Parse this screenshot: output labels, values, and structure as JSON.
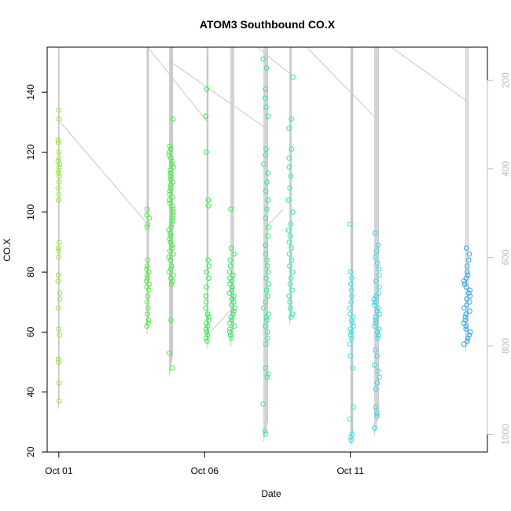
{
  "chart_data": {
    "type": "scatter",
    "title": "ATOM3 Southbound CO.X",
    "xlabel": "Date",
    "ylabel": "CO.X",
    "x_ticks": [
      {
        "label": "Oct 01",
        "day": 1
      },
      {
        "label": "Oct 06",
        "day": 6
      },
      {
        "label": "Oct 11",
        "day": 11
      }
    ],
    "xlim": [
      0.6,
      15.7
    ],
    "ylim": [
      20,
      155
    ],
    "y_ticks": [
      20,
      40,
      60,
      80,
      100,
      120,
      140
    ],
    "right_axis": {
      "description": "pressure (reversed)",
      "ticks": [
        200,
        400,
        600,
        800,
        1000
      ],
      "range": [
        125,
        1040
      ]
    },
    "grid": false,
    "legend": "none",
    "colors": {
      "early": "#8ee83a",
      "mid": "#2bef45",
      "late": "#2ee6e6",
      "end": "#2aa7ee",
      "pressure_line": "#c8c8c8"
    },
    "clusters": [
      {
        "day": 1.0,
        "points": [
          134,
          131,
          124,
          123,
          120,
          118,
          117,
          116,
          115,
          114,
          113,
          112,
          110,
          108,
          106,
          104,
          90,
          88,
          87,
          85,
          79,
          77,
          73,
          71,
          68,
          61,
          59,
          51,
          50,
          43,
          37
        ],
        "spread": 0.03
      },
      {
        "day": 4.05,
        "points": [
          101,
          99,
          98,
          96,
          95,
          84,
          82,
          81,
          80,
          79,
          78,
          77,
          76,
          75,
          74,
          72,
          70,
          68,
          66,
          64,
          63,
          62
        ],
        "spread": 0.05
      },
      {
        "day": 4.85,
        "points": [
          122,
          121,
          120,
          119,
          118,
          117,
          116,
          115,
          114,
          113,
          112,
          111,
          110,
          109,
          108,
          107,
          106,
          105,
          104,
          103,
          102,
          101,
          100,
          99,
          98,
          97,
          96,
          95,
          94,
          93,
          92,
          91,
          90,
          89,
          88,
          87,
          86,
          85,
          84,
          82,
          81,
          80,
          79,
          78,
          77,
          76,
          64,
          53,
          48,
          131
        ],
        "spread": 0.08
      },
      {
        "day": 6.1,
        "points": [
          141,
          132,
          120,
          104,
          102,
          84,
          82,
          80,
          78,
          75,
          72,
          70,
          68,
          66,
          65,
          64,
          63,
          62,
          61,
          60,
          59,
          58,
          57
        ],
        "spread": 0.06
      },
      {
        "day": 6.95,
        "points": [
          101,
          88,
          86,
          84,
          82,
          80,
          79,
          78,
          77,
          76,
          75,
          74,
          73,
          72,
          71,
          70,
          69,
          68,
          67,
          66,
          65,
          64,
          63,
          62,
          61,
          60,
          59,
          58
        ],
        "spread": 0.1
      },
      {
        "day": 8.1,
        "points": [
          151,
          148,
          141,
          138,
          135,
          132,
          121,
          119,
          116,
          113,
          110,
          107,
          104,
          101,
          98,
          95,
          92,
          89,
          86,
          84,
          82,
          80,
          78,
          76,
          74,
          72,
          70,
          68,
          66,
          65,
          64,
          62,
          60,
          58,
          56,
          48,
          46,
          45,
          36,
          27,
          26
        ],
        "spread": 0.1
      },
      {
        "day": 8.95,
        "points": [
          145,
          131,
          128,
          121,
          118,
          115,
          112,
          108,
          104,
          100,
          96,
          94,
          92,
          90,
          88,
          86,
          84,
          82,
          80,
          78,
          76,
          74,
          72,
          70,
          68,
          66,
          65
        ],
        "spread": 0.08
      },
      {
        "day": 11.05,
        "points": [
          96,
          80,
          78,
          76,
          74,
          72,
          70,
          68,
          66,
          65,
          64,
          63,
          62,
          61,
          60,
          59,
          58,
          56,
          52,
          48,
          35,
          31,
          26,
          25,
          24
        ],
        "spread": 0.07
      },
      {
        "day": 11.9,
        "points": [
          93,
          89,
          87,
          85,
          83,
          81,
          79,
          77,
          75,
          73,
          72,
          71,
          70,
          69,
          68,
          67,
          66,
          65,
          64,
          63,
          62,
          61,
          60,
          59,
          58,
          54,
          52,
          49,
          47,
          45,
          43,
          41,
          35,
          33,
          32,
          28
        ],
        "spread": 0.1
      },
      {
        "day": 15.0,
        "points": [
          88,
          86,
          84,
          82,
          80,
          79,
          78,
          77,
          76,
          75,
          74,
          73,
          72,
          71,
          70,
          69,
          68,
          67,
          66,
          65,
          64,
          63,
          62,
          61,
          60,
          59,
          58,
          57,
          56
        ],
        "spread": 0.12
      }
    ]
  }
}
